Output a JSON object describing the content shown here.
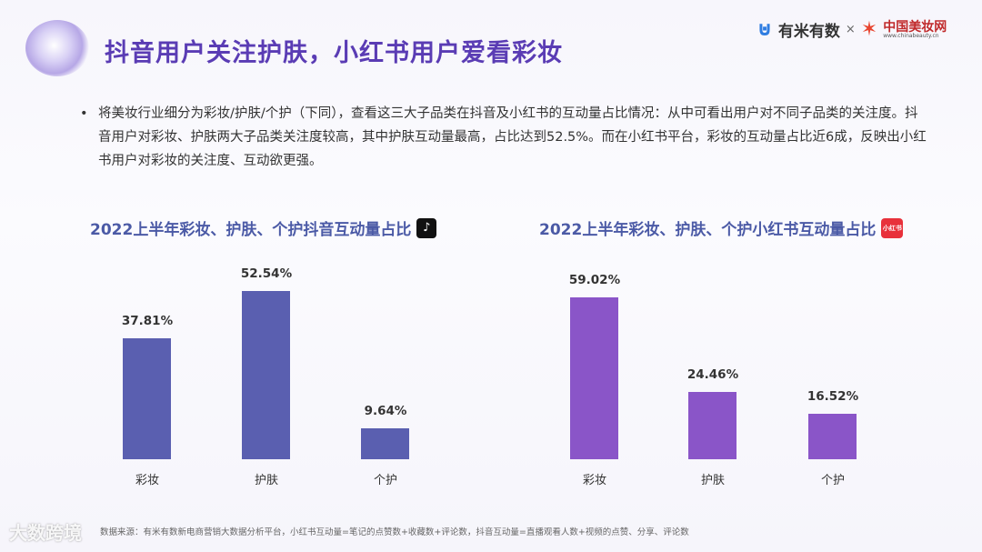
{
  "header": {
    "title": "抖音用户关注护肤，小红书用户爱看彩妆",
    "brand_youmi": "有米有数",
    "brand_sep": "×",
    "brand_china": "中国美妆网",
    "brand_china_url": "www.chinabeauty.cn"
  },
  "summary": "将美妆行业细分为彩妆/护肤/个护（下同），查看这三大子品类在抖音及小红书的互动量占比情况：从中可看出用户对不同子品类的关注度。抖音用户对彩妆、护肤两大子品类关注度较高，其中护肤互动量最高，占比达到52.5%。而在小红书平台，彩妆的互动量占比近6成，反映出小红书用户对彩妆的关注度、互动欲更强。",
  "footer": "数据来源：有米有数新电商营销大数据分析平台，小红书互动量=笔记的点赞数+收藏数+评论数，抖音互动量=直播观看人数+视频的点赞、分享、评论数",
  "watermark": "大数跨境",
  "chart_data": [
    {
      "type": "bar",
      "title": "2022上半年彩妆、护肤、个护抖音互动量占比",
      "badge_icon": "tiktok-icon",
      "categories": [
        "彩妆",
        "护肤",
        "个护"
      ],
      "values": [
        37.81,
        52.54,
        9.64
      ],
      "labels": [
        "37.81%",
        "52.54%",
        "9.64%"
      ],
      "color": "#5a5fb0",
      "ylim": [
        0,
        55
      ]
    },
    {
      "type": "bar",
      "title": "2022上半年彩妆、护肤、个护小红书互动量占比",
      "badge_icon": "xiaohongshu-icon",
      "badge_text": "小红书",
      "categories": [
        "彩妆",
        "护肤",
        "个护"
      ],
      "values": [
        59.02,
        24.46,
        16.52
      ],
      "labels": [
        "59.02%",
        "24.46%",
        "16.52%"
      ],
      "color": "#8a55c8",
      "ylim": [
        0,
        62
      ]
    }
  ]
}
